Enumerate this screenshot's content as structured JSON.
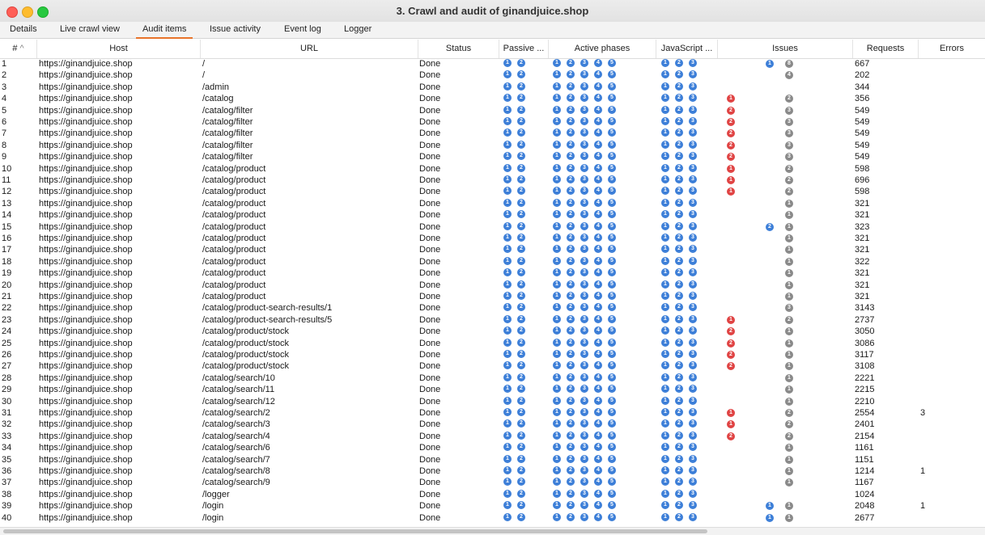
{
  "window": {
    "title": "3. Crawl and audit of ginandjuice.shop"
  },
  "tabs": [
    "Details",
    "Live crawl view",
    "Audit items",
    "Issue activity",
    "Event log",
    "Logger"
  ],
  "active_tab": 2,
  "columns": {
    "num": "#",
    "sort_indicator": "^",
    "host": "Host",
    "url": "URL",
    "status": "Status",
    "passive": "Passive ...",
    "active": "Active phases",
    "javascript": "JavaScript ...",
    "issues": "Issues",
    "requests": "Requests",
    "errors": "Errors"
  },
  "colors": {
    "blue": "#3d7fd8",
    "red": "#e04444",
    "gray": "#8a8a8a",
    "accent_tab": "#e8732a"
  },
  "phase_labels": {
    "passive": [
      "1",
      "2"
    ],
    "active": [
      "1",
      "2",
      "3",
      "4",
      "5"
    ],
    "javascript": [
      "1",
      "2",
      "3"
    ]
  },
  "rows": [
    {
      "num": "1",
      "host": "https://ginandjuice.shop",
      "url": "/",
      "status": "Done",
      "issue_left": "1",
      "issue_left_color": "blue",
      "issue_right": "8",
      "requests": "667",
      "errors": ""
    },
    {
      "num": "2",
      "host": "https://ginandjuice.shop",
      "url": "/",
      "status": "Done",
      "issue_left": "",
      "issue_left_color": "",
      "issue_right": "4",
      "requests": "202",
      "errors": ""
    },
    {
      "num": "3",
      "host": "https://ginandjuice.shop",
      "url": "/admin",
      "status": "Done",
      "issue_left": "",
      "issue_left_color": "",
      "issue_right": "",
      "requests": "344",
      "errors": ""
    },
    {
      "num": "4",
      "host": "https://ginandjuice.shop",
      "url": "/catalog",
      "status": "Done",
      "issue_left": "1",
      "issue_left_color": "red",
      "issue_right": "2",
      "requests": "356",
      "errors": ""
    },
    {
      "num": "5",
      "host": "https://ginandjuice.shop",
      "url": "/catalog/filter",
      "status": "Done",
      "issue_left": "2",
      "issue_left_color": "red",
      "issue_right": "3",
      "requests": "549",
      "errors": ""
    },
    {
      "num": "6",
      "host": "https://ginandjuice.shop",
      "url": "/catalog/filter",
      "status": "Done",
      "issue_left": "2",
      "issue_left_color": "red",
      "issue_right": "3",
      "requests": "549",
      "errors": ""
    },
    {
      "num": "7",
      "host": "https://ginandjuice.shop",
      "url": "/catalog/filter",
      "status": "Done",
      "issue_left": "2",
      "issue_left_color": "red",
      "issue_right": "3",
      "requests": "549",
      "errors": ""
    },
    {
      "num": "8",
      "host": "https://ginandjuice.shop",
      "url": "/catalog/filter",
      "status": "Done",
      "issue_left": "2",
      "issue_left_color": "red",
      "issue_right": "3",
      "requests": "549",
      "errors": ""
    },
    {
      "num": "9",
      "host": "https://ginandjuice.shop",
      "url": "/catalog/filter",
      "status": "Done",
      "issue_left": "2",
      "issue_left_color": "red",
      "issue_right": "3",
      "requests": "549",
      "errors": ""
    },
    {
      "num": "10",
      "host": "https://ginandjuice.shop",
      "url": "/catalog/product",
      "status": "Done",
      "issue_left": "1",
      "issue_left_color": "red",
      "issue_right": "2",
      "requests": "598",
      "errors": ""
    },
    {
      "num": "11",
      "host": "https://ginandjuice.shop",
      "url": "/catalog/product",
      "status": "Done",
      "issue_left": "1",
      "issue_left_color": "red",
      "issue_right": "2",
      "requests": "696",
      "errors": ""
    },
    {
      "num": "12",
      "host": "https://ginandjuice.shop",
      "url": "/catalog/product",
      "status": "Done",
      "issue_left": "1",
      "issue_left_color": "red",
      "issue_right": "2",
      "requests": "598",
      "errors": ""
    },
    {
      "num": "13",
      "host": "https://ginandjuice.shop",
      "url": "/catalog/product",
      "status": "Done",
      "issue_left": "",
      "issue_left_color": "",
      "issue_right": "1",
      "requests": "321",
      "errors": ""
    },
    {
      "num": "14",
      "host": "https://ginandjuice.shop",
      "url": "/catalog/product",
      "status": "Done",
      "issue_left": "",
      "issue_left_color": "",
      "issue_right": "1",
      "requests": "321",
      "errors": ""
    },
    {
      "num": "15",
      "host": "https://ginandjuice.shop",
      "url": "/catalog/product",
      "status": "Done",
      "issue_left": "2",
      "issue_left_color": "blue",
      "issue_right": "1",
      "requests": "323",
      "errors": ""
    },
    {
      "num": "16",
      "host": "https://ginandjuice.shop",
      "url": "/catalog/product",
      "status": "Done",
      "issue_left": "",
      "issue_left_color": "",
      "issue_right": "1",
      "requests": "321",
      "errors": ""
    },
    {
      "num": "17",
      "host": "https://ginandjuice.shop",
      "url": "/catalog/product",
      "status": "Done",
      "issue_left": "",
      "issue_left_color": "",
      "issue_right": "1",
      "requests": "321",
      "errors": ""
    },
    {
      "num": "18",
      "host": "https://ginandjuice.shop",
      "url": "/catalog/product",
      "status": "Done",
      "issue_left": "",
      "issue_left_color": "",
      "issue_right": "1",
      "requests": "322",
      "errors": ""
    },
    {
      "num": "19",
      "host": "https://ginandjuice.shop",
      "url": "/catalog/product",
      "status": "Done",
      "issue_left": "",
      "issue_left_color": "",
      "issue_right": "1",
      "requests": "321",
      "errors": ""
    },
    {
      "num": "20",
      "host": "https://ginandjuice.shop",
      "url": "/catalog/product",
      "status": "Done",
      "issue_left": "",
      "issue_left_color": "",
      "issue_right": "1",
      "requests": "321",
      "errors": ""
    },
    {
      "num": "21",
      "host": "https://ginandjuice.shop",
      "url": "/catalog/product",
      "status": "Done",
      "issue_left": "",
      "issue_left_color": "",
      "issue_right": "1",
      "requests": "321",
      "errors": ""
    },
    {
      "num": "22",
      "host": "https://ginandjuice.shop",
      "url": "/catalog/product-search-results/1",
      "status": "Done",
      "issue_left": "",
      "issue_left_color": "",
      "issue_right": "3",
      "requests": "3143",
      "errors": ""
    },
    {
      "num": "23",
      "host": "https://ginandjuice.shop",
      "url": "/catalog/product-search-results/5",
      "status": "Done",
      "issue_left": "1",
      "issue_left_color": "red",
      "issue_right": "2",
      "requests": "2737",
      "errors": ""
    },
    {
      "num": "24",
      "host": "https://ginandjuice.shop",
      "url": "/catalog/product/stock",
      "status": "Done",
      "issue_left": "2",
      "issue_left_color": "red",
      "issue_right": "1",
      "requests": "3050",
      "errors": ""
    },
    {
      "num": "25",
      "host": "https://ginandjuice.shop",
      "url": "/catalog/product/stock",
      "status": "Done",
      "issue_left": "2",
      "issue_left_color": "red",
      "issue_right": "1",
      "requests": "3086",
      "errors": ""
    },
    {
      "num": "26",
      "host": "https://ginandjuice.shop",
      "url": "/catalog/product/stock",
      "status": "Done",
      "issue_left": "2",
      "issue_left_color": "red",
      "issue_right": "1",
      "requests": "3117",
      "errors": ""
    },
    {
      "num": "27",
      "host": "https://ginandjuice.shop",
      "url": "/catalog/product/stock",
      "status": "Done",
      "issue_left": "2",
      "issue_left_color": "red",
      "issue_right": "1",
      "requests": "3108",
      "errors": ""
    },
    {
      "num": "28",
      "host": "https://ginandjuice.shop",
      "url": "/catalog/search/10",
      "status": "Done",
      "issue_left": "",
      "issue_left_color": "",
      "issue_right": "1",
      "requests": "2221",
      "errors": ""
    },
    {
      "num": "29",
      "host": "https://ginandjuice.shop",
      "url": "/catalog/search/11",
      "status": "Done",
      "issue_left": "",
      "issue_left_color": "",
      "issue_right": "1",
      "requests": "2215",
      "errors": ""
    },
    {
      "num": "30",
      "host": "https://ginandjuice.shop",
      "url": "/catalog/search/12",
      "status": "Done",
      "issue_left": "",
      "issue_left_color": "",
      "issue_right": "1",
      "requests": "2210",
      "errors": ""
    },
    {
      "num": "31",
      "host": "https://ginandjuice.shop",
      "url": "/catalog/search/2",
      "status": "Done",
      "issue_left": "1",
      "issue_left_color": "red",
      "issue_right": "2",
      "requests": "2554",
      "errors": "3"
    },
    {
      "num": "32",
      "host": "https://ginandjuice.shop",
      "url": "/catalog/search/3",
      "status": "Done",
      "issue_left": "1",
      "issue_left_color": "red",
      "issue_right": "2",
      "requests": "2401",
      "errors": ""
    },
    {
      "num": "33",
      "host": "https://ginandjuice.shop",
      "url": "/catalog/search/4",
      "status": "Done",
      "issue_left": "2",
      "issue_left_color": "red",
      "issue_right": "2",
      "requests": "2154",
      "errors": ""
    },
    {
      "num": "34",
      "host": "https://ginandjuice.shop",
      "url": "/catalog/search/6",
      "status": "Done",
      "issue_left": "",
      "issue_left_color": "",
      "issue_right": "1",
      "requests": "1161",
      "errors": ""
    },
    {
      "num": "35",
      "host": "https://ginandjuice.shop",
      "url": "/catalog/search/7",
      "status": "Done",
      "issue_left": "",
      "issue_left_color": "",
      "issue_right": "1",
      "requests": "1151",
      "errors": ""
    },
    {
      "num": "36",
      "host": "https://ginandjuice.shop",
      "url": "/catalog/search/8",
      "status": "Done",
      "issue_left": "",
      "issue_left_color": "",
      "issue_right": "1",
      "requests": "1214",
      "errors": "1"
    },
    {
      "num": "37",
      "host": "https://ginandjuice.shop",
      "url": "/catalog/search/9",
      "status": "Done",
      "issue_left": "",
      "issue_left_color": "",
      "issue_right": "1",
      "requests": "1167",
      "errors": ""
    },
    {
      "num": "38",
      "host": "https://ginandjuice.shop",
      "url": "/logger",
      "status": "Done",
      "issue_left": "",
      "issue_left_color": "",
      "issue_right": "",
      "requests": "1024",
      "errors": ""
    },
    {
      "num": "39",
      "host": "https://ginandjuice.shop",
      "url": "/login",
      "status": "Done",
      "issue_left": "1",
      "issue_left_color": "blue",
      "issue_right": "1",
      "requests": "2048",
      "errors": "1"
    },
    {
      "num": "40",
      "host": "https://ginandjuice.shop",
      "url": "/login",
      "status": "Done",
      "issue_left": "1",
      "issue_left_color": "blue",
      "issue_right": "1",
      "requests": "2677",
      "errors": ""
    }
  ]
}
